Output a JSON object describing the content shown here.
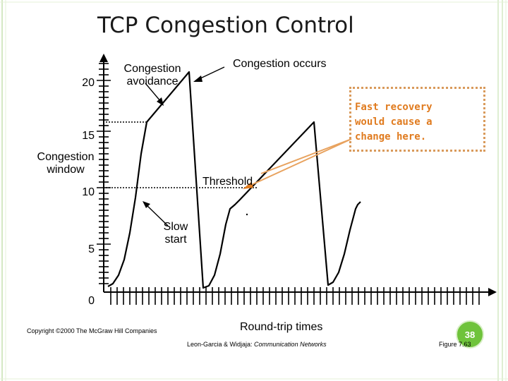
{
  "title": "TCP Congestion Control",
  "y_ticks": [
    "20",
    "15",
    "10",
    "5",
    "0"
  ],
  "y_axis_label": [
    "Congestion",
    "window"
  ],
  "x_axis_label": "Round-trip times",
  "annotations": {
    "congestion_avoidance": [
      "Congestion",
      "avoidance"
    ],
    "congestion_occurs": "Congestion occurs",
    "threshold": "Threshold",
    "slow_start": [
      "Slow",
      "start"
    ],
    "fast_recovery": [
      "Fast recovery",
      "would cause a",
      "change here."
    ]
  },
  "footer": {
    "copyright": "Copyright ©2000 The McGraw Hill Companies",
    "authors": "Leon-Garcia & Widjaja: ",
    "book": "Communication Networks",
    "page": "38",
    "figure": "Figure 7.63"
  },
  "colors": {
    "curve": "#000000",
    "accent": "#e07b1f",
    "frame": "#d4e8c4",
    "badge": "#6fc33b"
  }
}
